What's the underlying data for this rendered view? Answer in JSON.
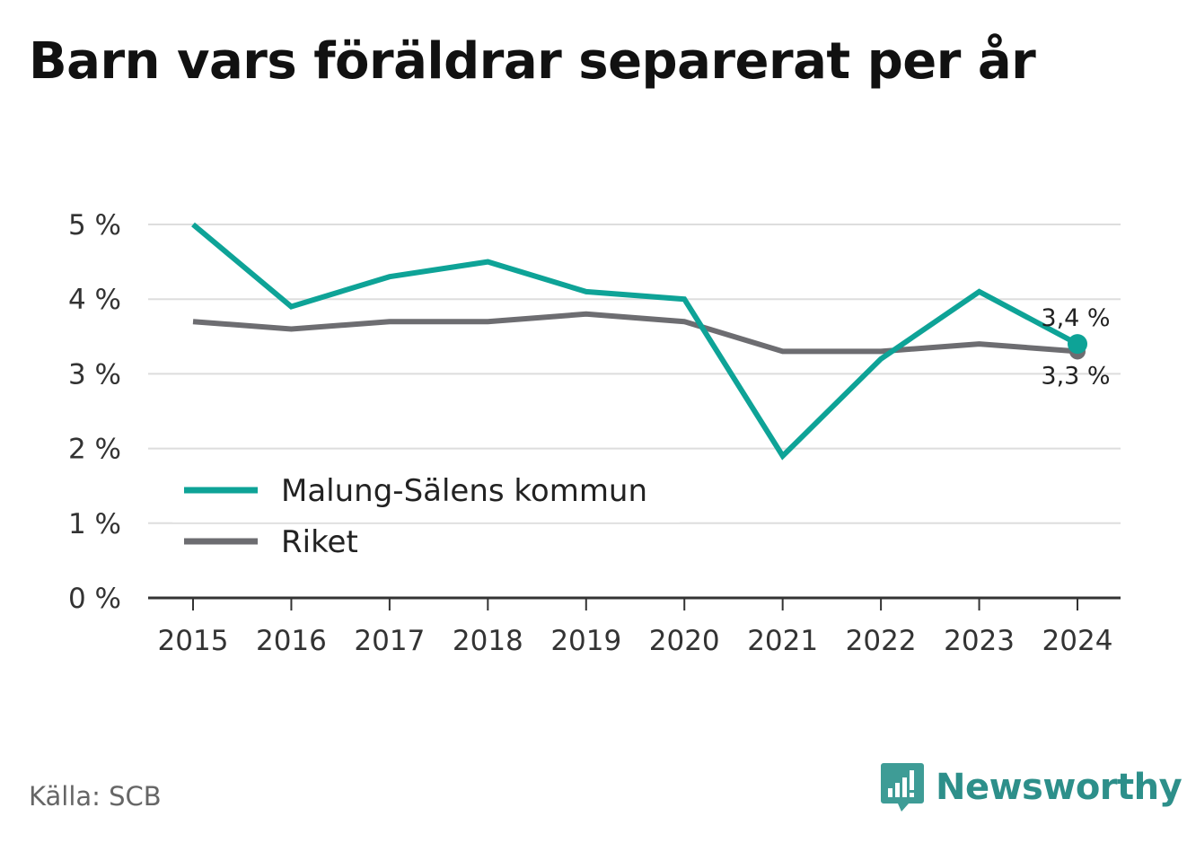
{
  "title": "Barn vars föräldrar separerat per år",
  "source": "Källa: SCB",
  "brand": {
    "name": "Newsworthy",
    "icon": "bar-chart-speech-bubble-icon"
  },
  "colors": {
    "series1": "#0ea397",
    "series2": "#6d6d71",
    "grid": "#dddddd",
    "axis": "#333333"
  },
  "chart_data": {
    "type": "line",
    "title": "Barn vars föräldrar separerat per år",
    "x": [
      "2015",
      "2016",
      "2017",
      "2018",
      "2019",
      "2020",
      "2021",
      "2022",
      "2023",
      "2024"
    ],
    "series": [
      {
        "name": "Malung-Sälens kommun",
        "color": "#0ea397",
        "values": [
          5.0,
          3.9,
          4.3,
          4.5,
          4.1,
          4.0,
          1.9,
          3.2,
          4.1,
          3.4
        ]
      },
      {
        "name": "Riket",
        "color": "#6d6d71",
        "values": [
          3.7,
          3.6,
          3.7,
          3.7,
          3.8,
          3.7,
          3.3,
          3.3,
          3.4,
          3.3
        ]
      }
    ],
    "yticks": [
      "0 %",
      "1 %",
      "2 %",
      "3 %",
      "4 %",
      "5 %"
    ],
    "ylim": [
      0,
      5
    ],
    "end_labels": [
      "3,4 %",
      "3,3 %"
    ],
    "grid": true,
    "legend": "bottom-left inside plot"
  }
}
